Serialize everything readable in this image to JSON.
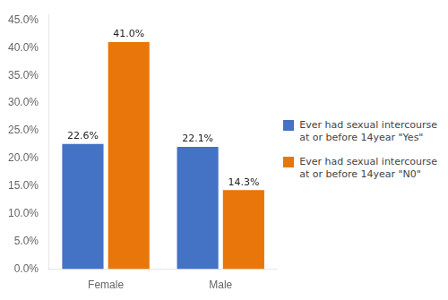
{
  "chart_data": {
    "type": "bar",
    "categories": [
      "Female",
      "Male"
    ],
    "series": [
      {
        "name": "Ever had sexual intercourse\nat or before 14year \"Yes\"",
        "color": "#4472C4",
        "values": [
          22.6,
          22.1
        ],
        "value_labels": [
          "22.6%",
          "22.1%"
        ]
      },
      {
        "name": "Ever had sexual intercourse\nat or before 14year \"N0\"",
        "color": "#E8760A",
        "values": [
          41.0,
          14.3
        ],
        "value_labels": [
          "41.0%",
          "14.3%"
        ]
      }
    ],
    "ylim": [
      0,
      46
    ],
    "yticks": [
      {
        "value": 0,
        "label": "0.0%"
      },
      {
        "value": 5,
        "label": "5.0%"
      },
      {
        "value": 10,
        "label": "10.0%"
      },
      {
        "value": 15,
        "label": "15.0%"
      },
      {
        "value": 20,
        "label": "20.0%"
      },
      {
        "value": 25,
        "label": "25.0%"
      },
      {
        "value": 30,
        "label": "30.0%"
      },
      {
        "value": 35,
        "label": "35.0%"
      },
      {
        "value": 40,
        "label": "40.0%"
      },
      {
        "value": 45,
        "label": "45.0%"
      }
    ],
    "grid": false,
    "legend": "right",
    "data_labels": true
  }
}
